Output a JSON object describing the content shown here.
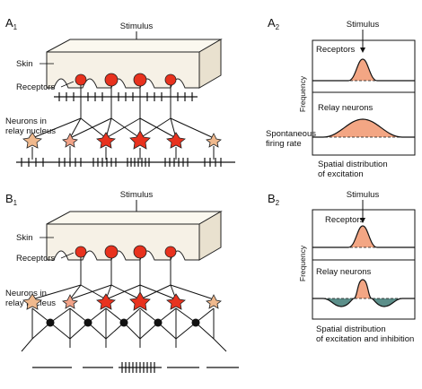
{
  "panel_a1": {
    "letter": "A",
    "index": "1",
    "stimulus": "Stimulus",
    "skin": "Skin",
    "receptors": "Receptors",
    "neurons_line1": "Neurons in",
    "neurons_line2": "relay nucleus"
  },
  "panel_a2": {
    "letter": "A",
    "index": "2",
    "stimulus": "Stimulus",
    "receptors": "Receptors",
    "relay": "Relay neurons",
    "y_axis": "Frequency",
    "spont_line1": "Spontaneous",
    "spont_line2": "firing rate",
    "spatial_line1": "Spatial distribution",
    "spatial_line2": "of excitation"
  },
  "panel_b1": {
    "letter": "B",
    "index": "1",
    "stimulus": "Stimulus",
    "skin": "Skin",
    "receptors": "Receptors",
    "neurons_line1": "Neurons in",
    "neurons_line2": "relay nucleus"
  },
  "panel_b2": {
    "letter": "B",
    "index": "2",
    "stimulus": "Stimulus",
    "receptors": "Receptors",
    "relay": "Relay neurons",
    "y_axis": "Frequency",
    "spatial_line1": "Spatial distribution",
    "spatial_line2": "of excitation and inhibition"
  },
  "colors": {
    "receptor": "#e8321e",
    "receptor_light": "#f2a388",
    "neuron": "#f0b98d",
    "excitation_fill": "#f3a684",
    "inhibition_fill": "#5c8f8a",
    "skin": "#f6f1e6",
    "inhibitory_neuron": "#111111"
  }
}
